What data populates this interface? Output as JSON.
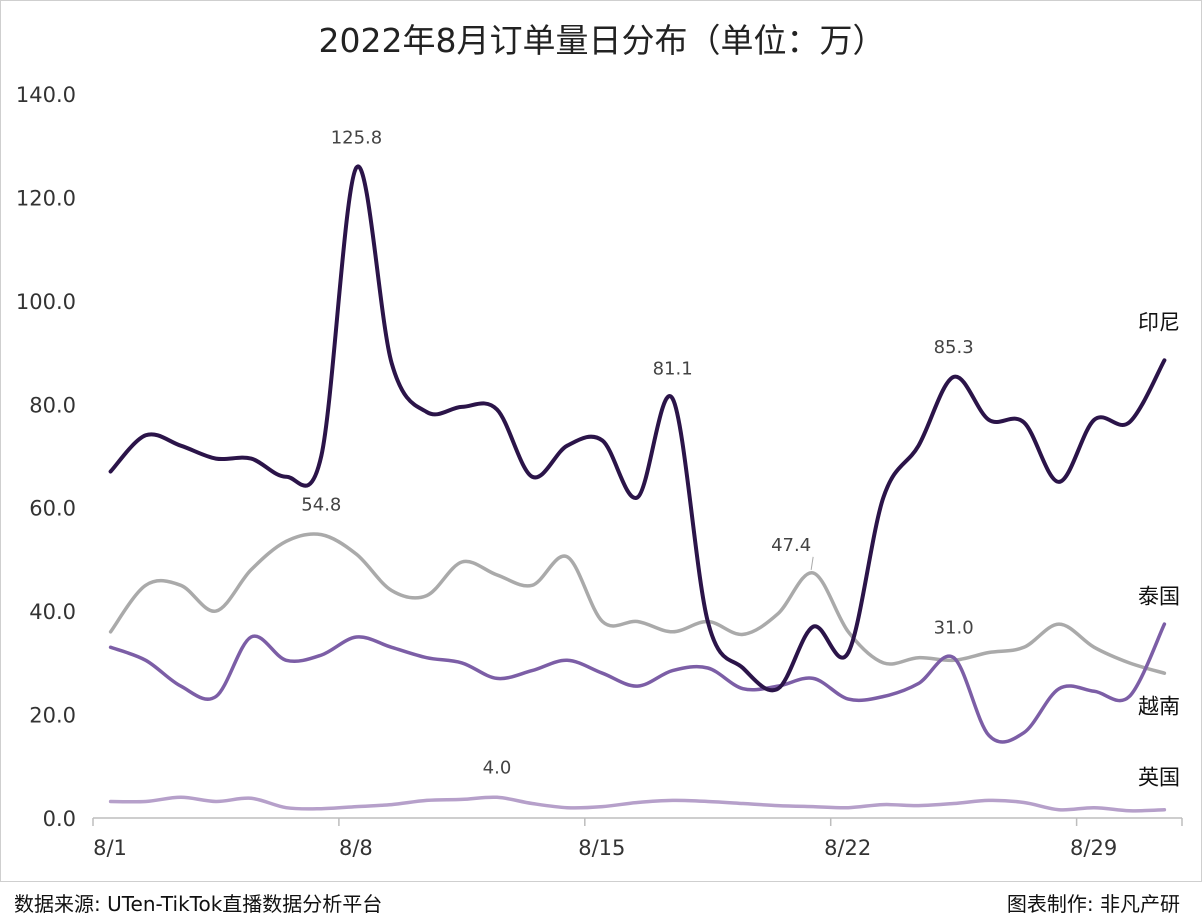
{
  "footer": {
    "source": "数据来源: UTen-TikTok直播数据分析平台",
    "credit": "图表制作: 非凡产研"
  },
  "chart_data": {
    "type": "line",
    "title": "2022年8月订单量日分布（单位：万）",
    "xlabel": "",
    "ylabel": "",
    "ylim": [
      0,
      140
    ],
    "y_ticks": [
      "0.0",
      "20.0",
      "40.0",
      "60.0",
      "80.0",
      "100.0",
      "120.0",
      "140.0"
    ],
    "x": [
      1,
      2,
      3,
      4,
      5,
      6,
      7,
      8,
      9,
      10,
      11,
      12,
      13,
      14,
      15,
      16,
      17,
      18,
      19,
      20,
      21,
      22,
      23,
      24,
      25,
      26,
      27,
      28,
      29,
      30,
      31
    ],
    "x_ticks": [
      "8/1",
      "8/8",
      "8/15",
      "8/22",
      "8/29"
    ],
    "x_tick_positions": [
      1,
      8,
      15,
      22,
      29
    ],
    "grid": false,
    "series": [
      {
        "name": "印尼",
        "color": "#2b1449",
        "values": [
          67,
          74,
          72,
          69.5,
          69.5,
          66,
          70,
          125.8,
          88,
          78.5,
          79.5,
          79,
          66,
          72,
          73,
          62,
          81.1,
          38,
          29,
          25,
          37,
          32,
          62,
          72,
          85.3,
          77,
          76.5,
          65,
          77,
          76.5,
          88.5
        ],
        "point_labels": {
          "8": "125.8",
          "17": "81.1",
          "25": "85.3"
        }
      },
      {
        "name": "泰国",
        "color": "#aaaaaa",
        "values": [
          36,
          45,
          45,
          40,
          48,
          53.5,
          54.8,
          51,
          44,
          43,
          49.5,
          47,
          45,
          50.5,
          38,
          38,
          36,
          38,
          35.5,
          39.5,
          47.4,
          36,
          30,
          31,
          30.5,
          32,
          33,
          37.5,
          33,
          30,
          28
        ],
        "point_labels": {
          "7": "54.8",
          "21": "47.4"
        }
      },
      {
        "name": "越南",
        "color": "#7c5ea6",
        "values": [
          33,
          30.5,
          25.5,
          23.5,
          35,
          30.5,
          31.5,
          35,
          33,
          31,
          30,
          27,
          28.5,
          30.5,
          28,
          25.5,
          28.5,
          29,
          25,
          25.5,
          27,
          23,
          23.5,
          26,
          31,
          16,
          16.5,
          25,
          24.5,
          23.5,
          37.5
        ],
        "point_labels": {
          "25": "31.0"
        }
      },
      {
        "name": "英国",
        "color": "#b6a0ca",
        "values": [
          3.2,
          3.2,
          4,
          3.2,
          3.8,
          2,
          1.8,
          2.2,
          2.6,
          3.4,
          3.6,
          4.0,
          2.8,
          2.0,
          2.2,
          3.0,
          3.4,
          3.2,
          2.8,
          2.4,
          2.2,
          2.0,
          2.6,
          2.4,
          2.8,
          3.4,
          3.0,
          1.6,
          2.0,
          1.4,
          1.6
        ],
        "point_labels": {
          "12": "4.0"
        }
      }
    ]
  }
}
